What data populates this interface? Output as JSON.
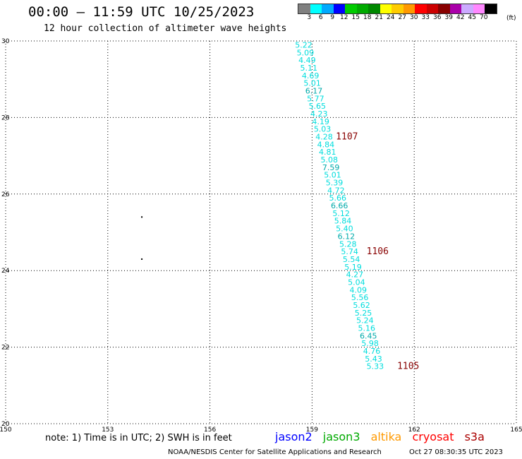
{
  "header": {
    "title": "00:00 – 11:59 UTC 10/25/2023",
    "subtitle": "12 hour collection of altimeter wave heights"
  },
  "colorbar": {
    "colors": [
      "#808080",
      "#00ffff",
      "#00aaff",
      "#0000ff",
      "#00cc00",
      "#00aa00",
      "#008800",
      "#ffff00",
      "#ffcc00",
      "#ff9900",
      "#ff0000",
      "#cc0000",
      "#880000",
      "#aa00aa",
      "#ccaaff",
      "#ff88ff",
      "#000000"
    ],
    "labels": [
      "3",
      "6",
      "9",
      "12",
      "15",
      "18",
      "21",
      "24",
      "27",
      "30",
      "33",
      "36",
      "39",
      "42",
      "45",
      "70"
    ],
    "unit": "(ft)"
  },
  "note": "note:  1) Time is in UTC;  2) SWH is in feet",
  "legend": {
    "jason2": "jason2",
    "jason3": "jason3",
    "altika": "altika",
    "cryosat": "cryosat",
    "s3a": "s3a",
    "colors": {
      "jason2": "#0000ff",
      "jason3": "#00aa00",
      "altika": "#ff9900",
      "cryosat": "#ff0000",
      "s3a": "#aa0000"
    }
  },
  "footer": {
    "left": "NOAA/NESDIS Center for Satellite Applications and Research",
    "right": "Oct 27 08:30:35 UTC 2023"
  },
  "chart_data": {
    "type": "scatter",
    "xlim": [
      150,
      165
    ],
    "ylim": [
      20,
      30
    ],
    "x_ticks": [
      "150",
      "153",
      "156",
      "159",
      "162",
      "165"
    ],
    "y_ticks": [
      "20",
      "22",
      "24",
      "26",
      "28",
      "30"
    ],
    "grid": true,
    "track_color": "#00dddd",
    "track_color_alt": "#00aaaa",
    "time_color": "#880000",
    "points": [
      {
        "x": 158.5,
        "y": 29.9,
        "v": "5.22"
      },
      {
        "x": 158.55,
        "y": 29.7,
        "v": "5.09"
      },
      {
        "x": 158.6,
        "y": 29.5,
        "v": "4.49"
      },
      {
        "x": 158.65,
        "y": 29.3,
        "v": "5.11"
      },
      {
        "x": 158.7,
        "y": 29.1,
        "v": "4.69"
      },
      {
        "x": 158.75,
        "y": 28.9,
        "v": "5.01"
      },
      {
        "x": 158.8,
        "y": 28.7,
        "v": "6.17",
        "alt": true
      },
      {
        "x": 158.85,
        "y": 28.5,
        "v": "5.77"
      },
      {
        "x": 158.9,
        "y": 28.3,
        "v": "5.65"
      },
      {
        "x": 158.95,
        "y": 28.1,
        "v": "4.23"
      },
      {
        "x": 159.0,
        "y": 27.9,
        "v": "4.19"
      },
      {
        "x": 159.05,
        "y": 27.7,
        "v": "5.03"
      },
      {
        "x": 159.1,
        "y": 27.5,
        "v": "4.28"
      },
      {
        "x": 159.15,
        "y": 27.3,
        "v": "4.84"
      },
      {
        "x": 159.2,
        "y": 27.1,
        "v": "4.81"
      },
      {
        "x": 159.25,
        "y": 26.9,
        "v": "5.08"
      },
      {
        "x": 159.3,
        "y": 26.7,
        "v": "7.59",
        "alt": true
      },
      {
        "x": 159.35,
        "y": 26.5,
        "v": "5.01"
      },
      {
        "x": 159.4,
        "y": 26.3,
        "v": "5.39"
      },
      {
        "x": 159.45,
        "y": 26.1,
        "v": "4.72"
      },
      {
        "x": 159.5,
        "y": 25.9,
        "v": "5.66"
      },
      {
        "x": 159.55,
        "y": 25.7,
        "v": "6.66",
        "alt": true
      },
      {
        "x": 159.6,
        "y": 25.5,
        "v": "5.12"
      },
      {
        "x": 159.65,
        "y": 25.3,
        "v": "5.84"
      },
      {
        "x": 159.7,
        "y": 25.1,
        "v": "5.40"
      },
      {
        "x": 159.75,
        "y": 24.9,
        "v": "6.12",
        "alt": true
      },
      {
        "x": 159.8,
        "y": 24.7,
        "v": "5.28"
      },
      {
        "x": 159.85,
        "y": 24.5,
        "v": "5.74"
      },
      {
        "x": 159.9,
        "y": 24.3,
        "v": "5.54"
      },
      {
        "x": 159.95,
        "y": 24.1,
        "v": "5.19"
      },
      {
        "x": 160.0,
        "y": 23.9,
        "v": "4.27"
      },
      {
        "x": 160.05,
        "y": 23.7,
        "v": "5.04"
      },
      {
        "x": 160.1,
        "y": 23.5,
        "v": "4.09"
      },
      {
        "x": 160.15,
        "y": 23.3,
        "v": "5.56"
      },
      {
        "x": 160.2,
        "y": 23.1,
        "v": "5.62"
      },
      {
        "x": 160.25,
        "y": 22.9,
        "v": "5.25"
      },
      {
        "x": 160.3,
        "y": 22.7,
        "v": "5.24"
      },
      {
        "x": 160.35,
        "y": 22.5,
        "v": "5.16"
      },
      {
        "x": 160.4,
        "y": 22.3,
        "v": "6.45",
        "alt": true
      },
      {
        "x": 160.45,
        "y": 22.1,
        "v": "5.98"
      },
      {
        "x": 160.5,
        "y": 21.9,
        "v": "4.76"
      },
      {
        "x": 160.55,
        "y": 21.7,
        "v": "5.43"
      },
      {
        "x": 160.6,
        "y": 21.5,
        "v": "5.33"
      }
    ],
    "time_labels": [
      {
        "x": 159.7,
        "y": 27.5,
        "t": "1107"
      },
      {
        "x": 160.6,
        "y": 24.5,
        "t": "1106"
      },
      {
        "x": 161.5,
        "y": 21.5,
        "t": "1105"
      }
    ],
    "markers": [
      {
        "x": 154.0,
        "y": 25.4
      },
      {
        "x": 154.0,
        "y": 24.3
      }
    ]
  }
}
